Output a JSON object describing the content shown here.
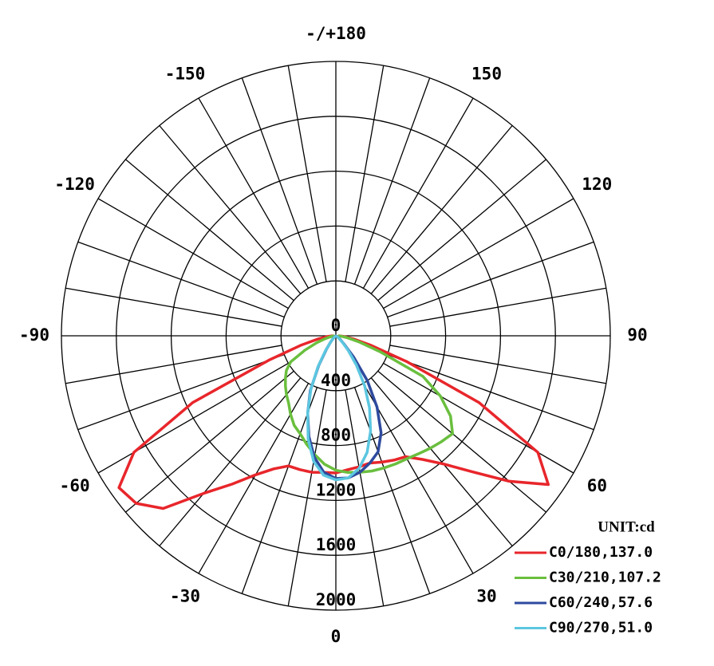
{
  "chart_data": {
    "type": "polar",
    "legend_title": "UNIT:cd",
    "legend_position": "lower right",
    "x": [
      -90,
      -85,
      -80,
      -75,
      -70,
      -65,
      -60,
      -55,
      -50,
      -45,
      -40,
      -35,
      -30,
      -25,
      -20,
      -15,
      -10,
      -5,
      0,
      5,
      10,
      15,
      20,
      25,
      30,
      35,
      40,
      45,
      50,
      55,
      60,
      65,
      70,
      75,
      80,
      85,
      90
    ],
    "xticks": [
      0,
      30,
      60,
      90,
      120,
      150,
      {
        "value": 180,
        "label": "-/+180"
      },
      -150,
      -120,
      -90,
      -60,
      -30
    ],
    "ylim": [
      0,
      2000
    ],
    "yticks": [
      0,
      400,
      800,
      1200,
      1600,
      2000
    ],
    "grid": true,
    "series": [
      {
        "name": "C0/180,137.0",
        "color": "#e8262b",
        "values": [
          20,
          60,
          130,
          260,
          520,
          1150,
          1700,
          1930,
          1900,
          1780,
          1500,
          1320,
          1170,
          1070,
          1010,
          1010,
          1010,
          1000,
          1000,
          980,
          970,
          960,
          980,
          1000,
          1018,
          1100,
          1220,
          1400,
          1650,
          1890,
          1700,
          1150,
          550,
          260,
          130,
          60,
          20
        ]
      },
      {
        "name": "C30/210,107.2",
        "color": "#6abf3e",
        "values": [
          10,
          20,
          40,
          80,
          150,
          250,
          380,
          440,
          480,
          520,
          560,
          600,
          660,
          720,
          760,
          820,
          880,
          940,
          980,
          1000,
          1010,
          1020,
          1025,
          1030,
          1035,
          1050,
          1070,
          1090,
          1110,
          1020,
          880,
          700,
          350,
          180,
          90,
          40,
          15
        ]
      },
      {
        "name": "C60/240,57.6",
        "color": "#2e4a9e",
        "values": [
          5,
          5,
          5,
          5,
          5,
          5,
          5,
          5,
          10,
          30,
          60,
          120,
          250,
          440,
          600,
          760,
          900,
          1000,
          1040,
          1040,
          1010,
          960,
          900,
          780,
          600,
          400,
          200,
          80,
          40,
          20,
          10,
          5,
          5,
          5,
          5,
          5,
          5
        ]
      },
      {
        "name": "C90/270,51.0",
        "color": "#5cc6e0",
        "values": [
          5,
          5,
          5,
          5,
          5,
          5,
          5,
          5,
          10,
          25,
          60,
          130,
          260,
          430,
          600,
          780,
          930,
          1020,
          1050,
          1040,
          980,
          880,
          740,
          580,
          420,
          260,
          140,
          70,
          30,
          15,
          8,
          5,
          5,
          5,
          5,
          5,
          5
        ]
      }
    ]
  }
}
